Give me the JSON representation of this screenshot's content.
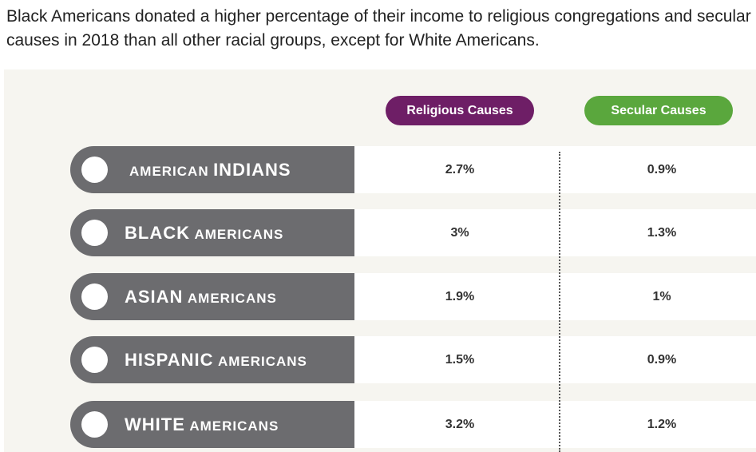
{
  "title": "Black Americans donated a higher percentage of their income to religious congregations and secular causes in 2018 than all other racial groups, except for White Americans.",
  "chart_data": {
    "type": "table",
    "columns": [
      "Religious Causes",
      "Secular Causes"
    ],
    "rows": [
      {
        "label_small": "AMERICAN",
        "label_big": "INDIANS",
        "order": "small-first",
        "religious": "2.7%",
        "secular": "0.9%"
      },
      {
        "label_small": "AMERICANS",
        "label_big": "BLACK",
        "order": "big-first",
        "religious": "3%",
        "secular": "1.3%"
      },
      {
        "label_small": "AMERICANS",
        "label_big": "ASIAN",
        "order": "big-first",
        "religious": "1.9%",
        "secular": "1%"
      },
      {
        "label_small": "AMERICANS",
        "label_big": "HISPANIC",
        "order": "big-first",
        "religious": "1.5%",
        "secular": "0.9%"
      },
      {
        "label_small": "AMERICANS",
        "label_big": "WHITE",
        "order": "big-first",
        "religious": "3.2%",
        "secular": "1.2%"
      }
    ],
    "colors": {
      "religious": "#6e1e66",
      "secular": "#5aa73d",
      "label_band": "#6c6c6f",
      "background": "#f6f5f0"
    }
  }
}
